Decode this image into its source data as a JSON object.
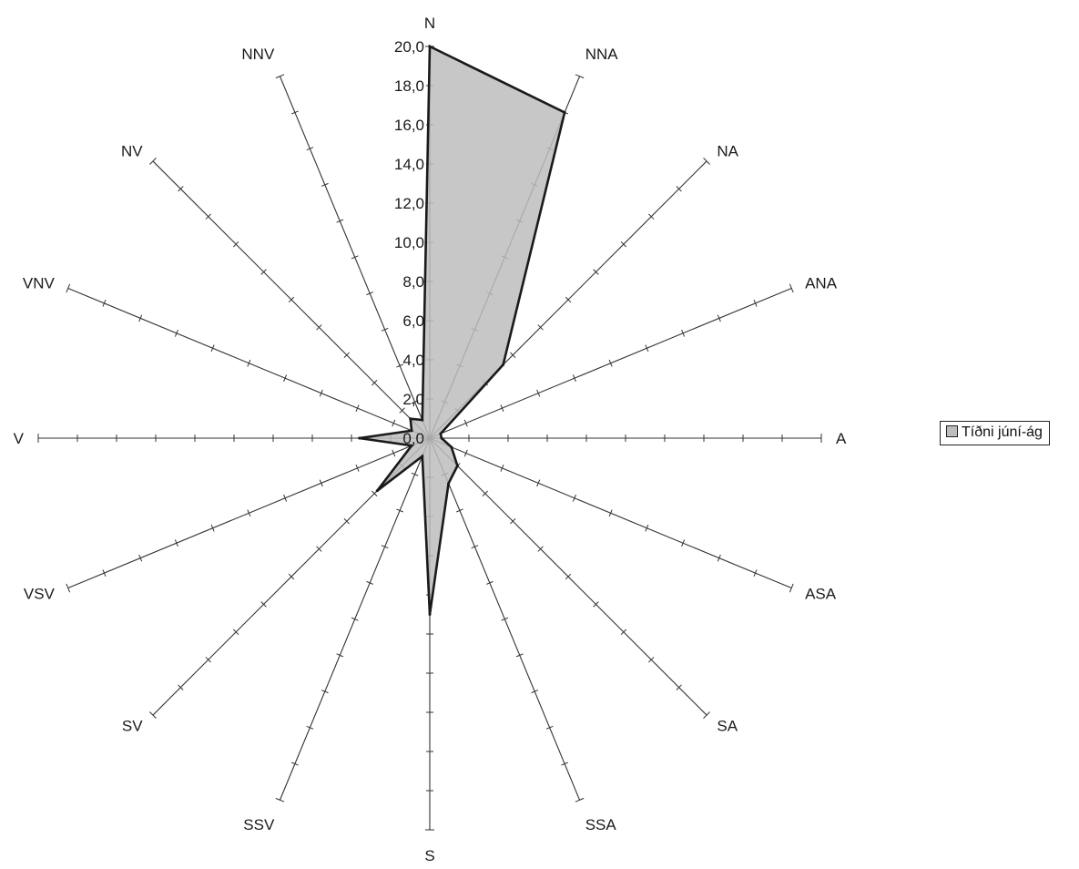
{
  "chart_data": {
    "type": "radar",
    "directions": [
      "N",
      "NNA",
      "NA",
      "ANA",
      "A",
      "ASA",
      "SA",
      "SSA",
      "S",
      "SSV",
      "SV",
      "VSV",
      "V",
      "VNV",
      "NV",
      "NNV"
    ],
    "radial_ticks": [
      "0,0",
      "2,0",
      "4,0",
      "6,0",
      "8,0",
      "10,0",
      "12,0",
      "14,0",
      "16,0",
      "18,0",
      "20,0"
    ],
    "rlim": [
      0,
      20
    ],
    "series": [
      {
        "name": "Tíðni júní-ág",
        "values": [
          20.0,
          18.0,
          5.3,
          0.6,
          0.6,
          1.2,
          2.0,
          2.5,
          9.0,
          1.0,
          3.8,
          1.0,
          3.6,
          1.0,
          1.4,
          1.0
        ],
        "color": "#bdbdbd",
        "stroke": "#1a1a1a"
      }
    ],
    "legend_position": "right"
  }
}
